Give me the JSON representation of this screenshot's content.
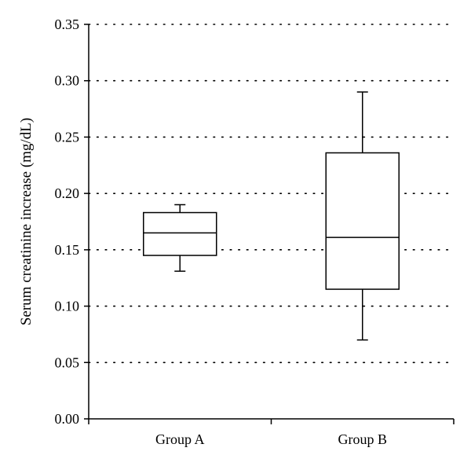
{
  "chart_data": {
    "type": "box",
    "title": "",
    "xlabel": "",
    "ylabel": "Serum creatinine increase (mg/dL)",
    "ylim": [
      0,
      0.35
    ],
    "yticks": [
      "0.00",
      "0.05",
      "0.10",
      "0.15",
      "0.20",
      "0.25",
      "0.30",
      "0.35"
    ],
    "ytick_values": [
      0,
      0.05,
      0.1,
      0.15,
      0.2,
      0.25,
      0.3,
      0.35
    ],
    "grid": "horizontal dotted",
    "categories": [
      "Group A",
      "Group B"
    ],
    "boxes": [
      {
        "category": "Group A",
        "whisker_low": 0.131,
        "q1": 0.145,
        "median": 0.165,
        "q3": 0.183,
        "whisker_high": 0.19
      },
      {
        "category": "Group B",
        "whisker_low": 0.07,
        "q1": 0.115,
        "median": 0.161,
        "q3": 0.236,
        "whisker_high": 0.29
      }
    ]
  }
}
